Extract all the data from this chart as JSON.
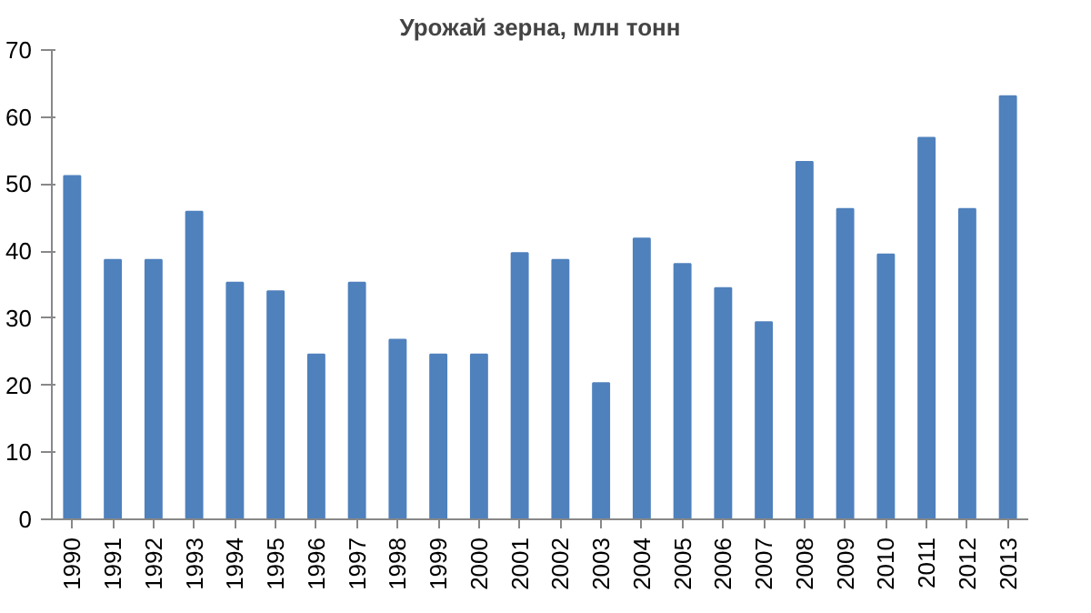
{
  "chart_data": {
    "type": "bar",
    "title": "Урожай зерна, млн тонн",
    "categories": [
      "1990",
      "1991",
      "1992",
      "1993",
      "1994",
      "1995",
      "1996",
      "1997",
      "1998",
      "1999",
      "2000",
      "2001",
      "2002",
      "2003",
      "2004",
      "2005",
      "2006",
      "2007",
      "2008",
      "2009",
      "2010",
      "2011",
      "2012",
      "2013"
    ],
    "values": [
      51.2,
      38.7,
      38.7,
      45.9,
      35.3,
      34.0,
      24.6,
      35.3,
      26.8,
      24.6,
      24.6,
      39.7,
      38.7,
      20.3,
      41.9,
      38.1,
      34.5,
      29.4,
      53.3,
      46.3,
      39.5,
      56.9,
      46.3,
      63.1
    ],
    "color": "#4f81bd",
    "ylim": [
      0,
      70
    ],
    "yticks": [
      0,
      10,
      20,
      30,
      40,
      50,
      60,
      70
    ],
    "grid": false
  }
}
